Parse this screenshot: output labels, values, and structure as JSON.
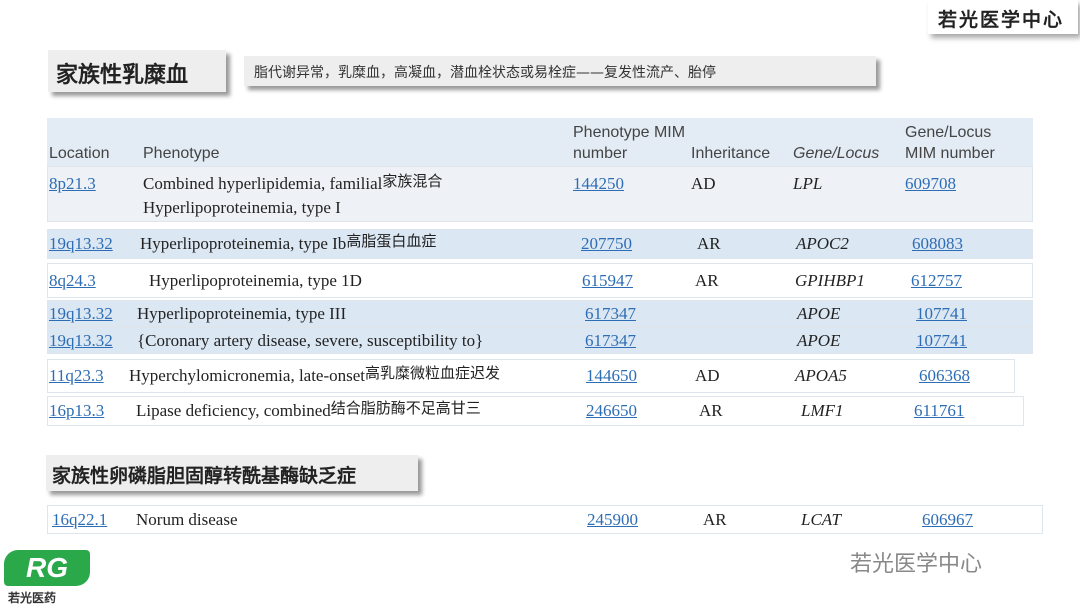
{
  "brand": "若光医学中心",
  "section1": {
    "title": "家族性乳糜血",
    "subtitle": "脂代谢异常，乳糜血，高凝血，潜血栓状态或易栓症——复发性流产、胎停"
  },
  "table": {
    "headers": [
      "Location",
      "Phenotype",
      "Phenotype MIM number",
      "Inheritance",
      "Gene/Locus",
      "Gene/Locus MIM number"
    ],
    "rows": [
      {
        "location": "8p21.3",
        "phenotype": [
          "Combined hyperlipidemia, familial",
          "Hyperlipoproteinemia, type I"
        ],
        "note": "家族混合",
        "mim": "144250",
        "inheritance": "AD",
        "gene": "LPL",
        "gene_mim": "609708"
      },
      {
        "location": "19q13.32",
        "phenotype": [
          "Hyperlipoproteinemia, type Ib"
        ],
        "note": "高脂蛋白血症",
        "mim": "207750",
        "inheritance": "AR",
        "gene": "APOC2",
        "gene_mim": "608083"
      },
      {
        "location": "8q24.3",
        "phenotype": [
          "Hyperlipoproteinemia, type 1D"
        ],
        "mim": "615947",
        "inheritance": "AR",
        "gene": "GPIHBP1",
        "gene_mim": "612757"
      },
      {
        "location": "19q13.32",
        "phenotype": [
          "Hyperlipoproteinemia, type III"
        ],
        "mim": "617347",
        "gene": "APOE",
        "gene_mim": "107741"
      },
      {
        "location": "19q13.32",
        "phenotype": [
          "{Coronary artery disease, severe, susceptibility to}"
        ],
        "mim": "617347",
        "gene": "APOE",
        "gene_mim": "107741"
      },
      {
        "location": "11q23.3",
        "phenotype": [
          "Hyperchylomicronemia, late-onset"
        ],
        "note": "高乳糜微粒血症迟发",
        "mim": "144650",
        "inheritance": "AD",
        "gene": "APOA5",
        "gene_mim": "606368"
      },
      {
        "location": "16p13.3",
        "phenotype": [
          "Lipase deficiency, combined"
        ],
        "note": "结合脂肪酶不足高甘三",
        "mim": "246650",
        "inheritance": "AR",
        "gene": "LMF1",
        "gene_mim": "611761"
      }
    ]
  },
  "section2": {
    "title": "家族性卵磷脂胆固醇转酰基酶缺乏症"
  },
  "table2": {
    "rows": [
      {
        "location": "16q22.1",
        "phenotype": [
          "Norum disease"
        ],
        "mim": "245900",
        "inheritance": "AR",
        "gene": "LCAT",
        "gene_mim": "606967"
      }
    ]
  },
  "watermark": "若光医学中心",
  "logo": {
    "mark": "RG",
    "name": "若光医药"
  }
}
